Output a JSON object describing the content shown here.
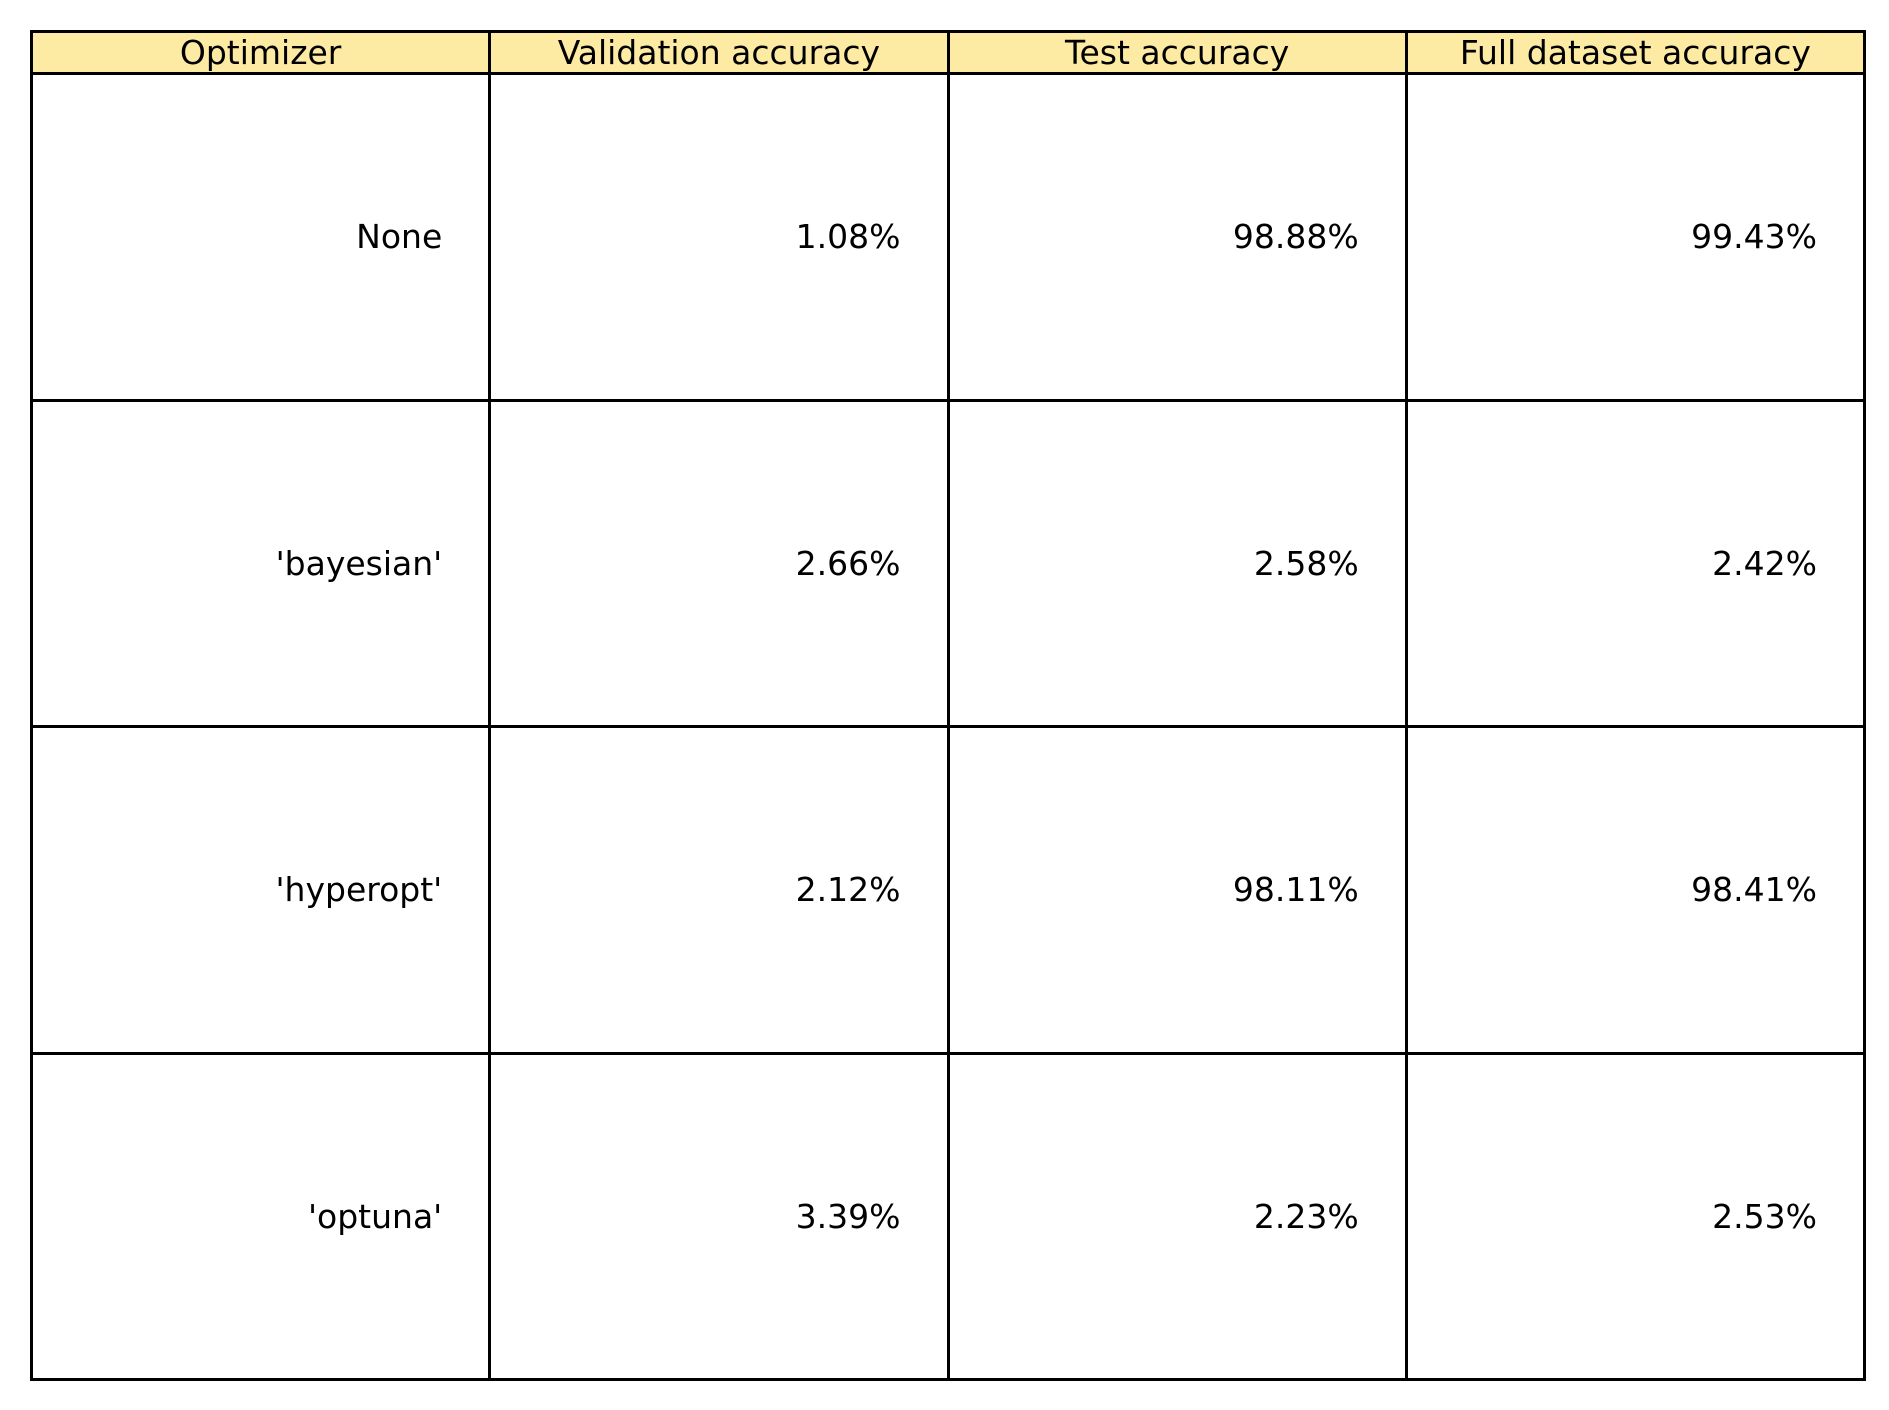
{
  "chart_data": {
    "type": "table",
    "header_color": "#fdeba4",
    "columns": [
      "Optimizer",
      "Validation accuracy",
      "Test accuracy",
      "Full dataset accuracy"
    ],
    "rows": [
      [
        "None",
        "1.08%",
        "98.88%",
        "99.43%"
      ],
      [
        "'bayesian'",
        "2.66%",
        "2.58%",
        "2.42%"
      ],
      [
        "'hyperopt'",
        "2.12%",
        "98.11%",
        "98.41%"
      ],
      [
        "'optuna'",
        "3.39%",
        "2.23%",
        "2.53%"
      ]
    ]
  }
}
